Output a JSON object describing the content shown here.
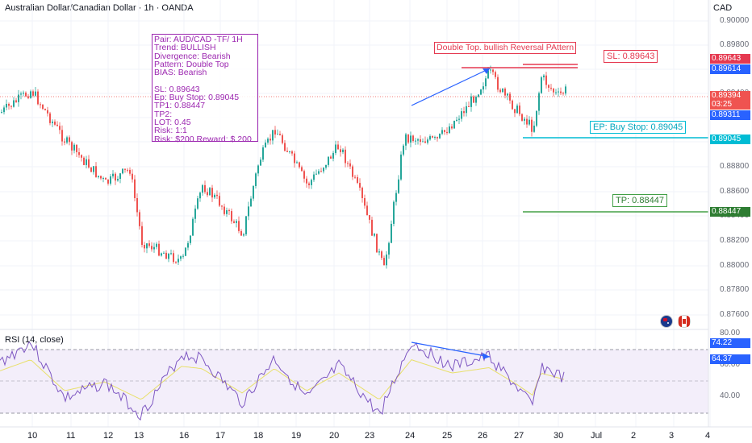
{
  "header": {
    "title": "Australian Dollar/Canadian Dollar · 1h · OANDA",
    "currency": "CAD"
  },
  "price_axis": {
    "ticks": [
      "0.90000",
      "0.89800",
      "0.89600",
      "0.89400",
      "0.89200",
      "0.89000",
      "0.88800",
      "0.88600",
      "0.88400",
      "0.88200",
      "0.88000",
      "0.87800",
      "0.87600"
    ]
  },
  "badges": {
    "sl": "0.89643",
    "current": "0.89614",
    "last": "0.89394",
    "countdown": "03:25",
    "prev": "0.89311",
    "ep": "0.89045",
    "tp": "0.88447",
    "rsi_high": "74.22",
    "rsi_val": "64.37"
  },
  "rsi_axis": {
    "ticks": [
      "80.00",
      "60.00",
      "40.00"
    ]
  },
  "time_axis": {
    "ticks": [
      "10",
      "11",
      "12",
      "13",
      "16",
      "17",
      "18",
      "19",
      "20",
      "23",
      "24",
      "25",
      "26",
      "27",
      "30",
      "Jul",
      "2",
      "3",
      "4"
    ]
  },
  "info_box": {
    "lines": [
      "Pair: AUD/CAD -TF/ 1H",
      "Trend: BULLISH",
      "Divergence: Bearish",
      "Pattern: Double Top",
      "BIAS: Bearish",
      "",
      "SL: 0.89643",
      "Ep: Buy Stop: 0.89045",
      "TP1: 0.88447",
      "TP2:",
      "LOT: 0.45",
      "Risk:   1:1",
      "Risk: $200 Reward: $ 200"
    ]
  },
  "annotations": {
    "double_top": "Double Top. bullish Reversal PAttern",
    "sl_label": "SL: 0.89643",
    "ep_label": "EP: Buy Stop: 0.89045",
    "tp_label": "TP: 0.88447"
  },
  "rsi": {
    "label": "RSI (14, close)"
  },
  "colors": {
    "up": "#26a69a",
    "down": "#ef5350",
    "sl": "#e53950",
    "ep": "#00bcd4",
    "tp": "#2e7d32",
    "rsi": "#7e57c2",
    "arrow": "#2962ff"
  }
}
